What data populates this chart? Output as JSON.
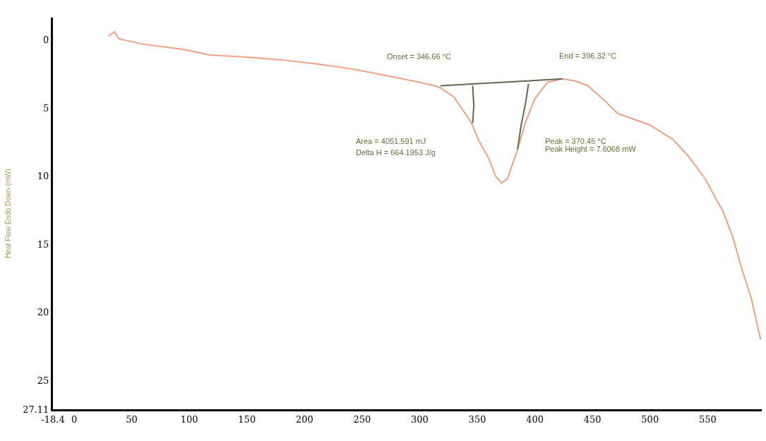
{
  "chart_data": {
    "type": "line",
    "ylabel": "Heat Flow Endo Down (mW)",
    "xlim": [
      -18.4,
      597
    ],
    "xticks": [
      {
        "value": -18.4,
        "label": "-18.4"
      },
      0,
      50,
      100,
      150,
      200,
      250,
      300,
      350,
      400,
      450,
      500,
      550
    ],
    "ylim": [
      27.11,
      -1.65
    ],
    "yticks": [
      0,
      5,
      10,
      15,
      20,
      25,
      {
        "value": 27.11,
        "label": "27.11"
      }
    ],
    "marker": "none",
    "line_style": "solid",
    "series": [
      {
        "color": "#f0a080",
        "x": [
          30,
          35,
          39,
          60,
          94,
          118,
          150,
          179,
          210,
          240,
          277,
          300,
          313,
          318,
          330,
          344.5,
          352,
          360,
          366,
          371,
          376,
          384,
          392,
          400,
          411,
          424,
          435,
          446,
          460,
          472,
          499,
          520,
          533,
          548,
          560,
          563,
          572,
          579,
          588,
          596
        ],
        "values": [
          -0.3,
          -0.6,
          -0.1,
          0.3,
          0.67,
          1.1,
          1.25,
          1.44,
          1.75,
          2.1,
          2.7,
          3.1,
          3.35,
          3.5,
          4.2,
          6.0,
          7.5,
          8.7,
          10.0,
          10.5,
          10.2,
          8.3,
          6.0,
          4.3,
          3.1,
          2.85,
          3.0,
          3.35,
          4.4,
          5.4,
          6.2,
          7.3,
          8.5,
          10.2,
          12.1,
          12.5,
          14.5,
          16.6,
          19.0,
          22.0
        ]
      },
      {
        "color": "#5f6b4f",
        "x": [
          318,
          424
        ],
        "values": [
          3.35,
          2.85
        ]
      },
      {
        "color": "#5f6b4f",
        "x": [
          346,
          347,
          346
        ],
        "values": [
          3.35,
          4.8,
          6.1
        ]
      },
      {
        "color": "#5f6b4f",
        "x": [
          394.5,
          392,
          388,
          385
        ],
        "values": [
          3.2,
          4.6,
          6.3,
          8.0
        ]
      }
    ],
    "annotations": [
      "Onset = 346.66 °C",
      "End = 396.32 °C",
      "Area = 4051.591 mJ",
      "Delta H = 664.1953 J/g",
      "Peak = 370.45 °C",
      "Peak Height = 7.6068 mW"
    ]
  }
}
